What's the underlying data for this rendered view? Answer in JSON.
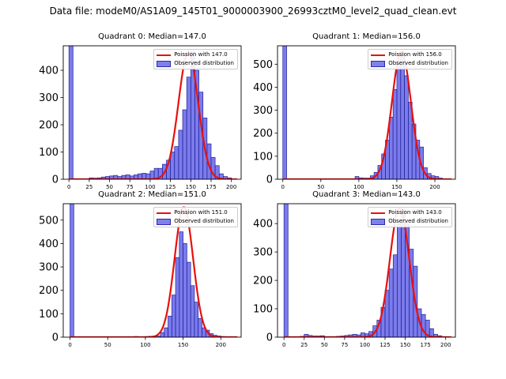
{
  "figure_title": "Data file: modeM0/AS1A09_145T01_9000003900_26993cztM0_level2_quad_clean.evt",
  "colors": {
    "poisson": "#e8100c",
    "bar_fill": "#3c3ce1",
    "bar_edge": "#23239a"
  },
  "chart_data": [
    {
      "type": "bar",
      "title": "Quadrant 0: Median=147.0",
      "legend": {
        "line_label": "Poission with 147.0",
        "bar_label": "Observed distribution",
        "placement": "top-right"
      },
      "xlim": [
        -7,
        212
      ],
      "ylim": [
        0,
        490
      ],
      "xticks": [
        0,
        25,
        50,
        75,
        100,
        125,
        150,
        175,
        200
      ],
      "yticks": [
        0,
        100,
        200,
        300,
        400
      ],
      "poisson_mean": 147,
      "poisson_peak": 465,
      "bin_width": 5,
      "bins": [
        0,
        5,
        10,
        15,
        20,
        25,
        30,
        35,
        40,
        45,
        50,
        55,
        60,
        65,
        70,
        75,
        80,
        85,
        90,
        95,
        100,
        105,
        110,
        115,
        120,
        125,
        130,
        135,
        140,
        145,
        150,
        155,
        160,
        165,
        170,
        175,
        180,
        185,
        190,
        195,
        200
      ],
      "counts": [
        600,
        0,
        0,
        0,
        0,
        5,
        4,
        5,
        8,
        10,
        12,
        14,
        10,
        14,
        16,
        12,
        16,
        20,
        22,
        20,
        30,
        40,
        40,
        55,
        70,
        100,
        120,
        180,
        255,
        375,
        470,
        400,
        320,
        225,
        130,
        80,
        50,
        20,
        10,
        5,
        1
      ]
    },
    {
      "type": "bar",
      "title": "Quadrant 1: Median=156.0",
      "legend": {
        "line_label": "Poission with 156.0",
        "bar_label": "Observed distribution",
        "placement": "top-right"
      },
      "xlim": [
        -7,
        227
      ],
      "ylim": [
        0,
        580
      ],
      "xticks": [
        0,
        50,
        100,
        150,
        200
      ],
      "yticks": [
        0,
        100,
        200,
        300,
        400,
        500
      ],
      "poisson_mean": 156,
      "poisson_peak": 555,
      "bin_width": 5,
      "bins": [
        0,
        5,
        10,
        15,
        20,
        25,
        30,
        35,
        40,
        45,
        50,
        55,
        60,
        65,
        70,
        75,
        80,
        85,
        90,
        95,
        100,
        105,
        110,
        115,
        120,
        125,
        130,
        135,
        140,
        145,
        150,
        155,
        160,
        165,
        170,
        175,
        180,
        185,
        190,
        195,
        200,
        205,
        210,
        215
      ],
      "counts": [
        700,
        0,
        0,
        0,
        0,
        0,
        0,
        0,
        0,
        0,
        0,
        0,
        0,
        0,
        0,
        0,
        0,
        0,
        0,
        12,
        6,
        5,
        5,
        15,
        30,
        60,
        110,
        170,
        270,
        390,
        500,
        545,
        450,
        335,
        240,
        170,
        140,
        50,
        25,
        15,
        12,
        5,
        2,
        1
      ]
    },
    {
      "type": "bar",
      "title": "Quadrant 2: Median=151.0",
      "legend": {
        "line_label": "Poission with 151.0",
        "bar_label": "Observed distribution",
        "placement": "top-right"
      },
      "xlim": [
        -9,
        227
      ],
      "ylim": [
        0,
        570
      ],
      "xticks": [
        0,
        50,
        100,
        150,
        200
      ],
      "yticks": [
        0,
        100,
        200,
        300,
        400,
        500
      ],
      "poisson_mean": 151,
      "poisson_peak": 555,
      "bin_width": 5,
      "bins": [
        0,
        5,
        10,
        15,
        20,
        25,
        30,
        35,
        40,
        45,
        50,
        55,
        60,
        65,
        70,
        75,
        80,
        85,
        90,
        95,
        100,
        105,
        110,
        115,
        120,
        125,
        130,
        135,
        140,
        145,
        150,
        155,
        160,
        165,
        170,
        175,
        180,
        185,
        190,
        195,
        200,
        205,
        210,
        215
      ],
      "counts": [
        700,
        0,
        0,
        0,
        0,
        0,
        0,
        0,
        0,
        0,
        0,
        0,
        0,
        0,
        0,
        0,
        2,
        3,
        2,
        2,
        3,
        4,
        5,
        5,
        20,
        40,
        90,
        180,
        340,
        450,
        400,
        320,
        220,
        150,
        80,
        40,
        30,
        15,
        8,
        5,
        3,
        1,
        0,
        0
      ]
    },
    {
      "type": "bar",
      "title": "Quadrant 3: Median=143.0",
      "legend": {
        "line_label": "Poission with 143.0",
        "bar_label": "Observed distribution",
        "placement": "top-right"
      },
      "xlim": [
        -8,
        212
      ],
      "ylim": [
        0,
        470
      ],
      "xticks": [
        0,
        25,
        50,
        75,
        100,
        125,
        150,
        175,
        200
      ],
      "yticks": [
        0,
        100,
        200,
        300,
        400
      ],
      "poisson_mean": 143,
      "poisson_peak": 455,
      "bin_width": 5,
      "bins": [
        0,
        5,
        10,
        15,
        20,
        25,
        30,
        35,
        40,
        45,
        50,
        55,
        60,
        65,
        70,
        75,
        80,
        85,
        90,
        95,
        100,
        105,
        110,
        115,
        120,
        125,
        130,
        135,
        140,
        145,
        150,
        155,
        160,
        165,
        170,
        175,
        180,
        185,
        190,
        195,
        200
      ],
      "counts": [
        600,
        0,
        0,
        0,
        3,
        10,
        6,
        4,
        4,
        5,
        2,
        2,
        2,
        3,
        4,
        6,
        8,
        10,
        8,
        15,
        12,
        20,
        40,
        60,
        105,
        165,
        240,
        290,
        400,
        450,
        400,
        310,
        250,
        100,
        80,
        60,
        30,
        10,
        5,
        2,
        1
      ]
    }
  ]
}
